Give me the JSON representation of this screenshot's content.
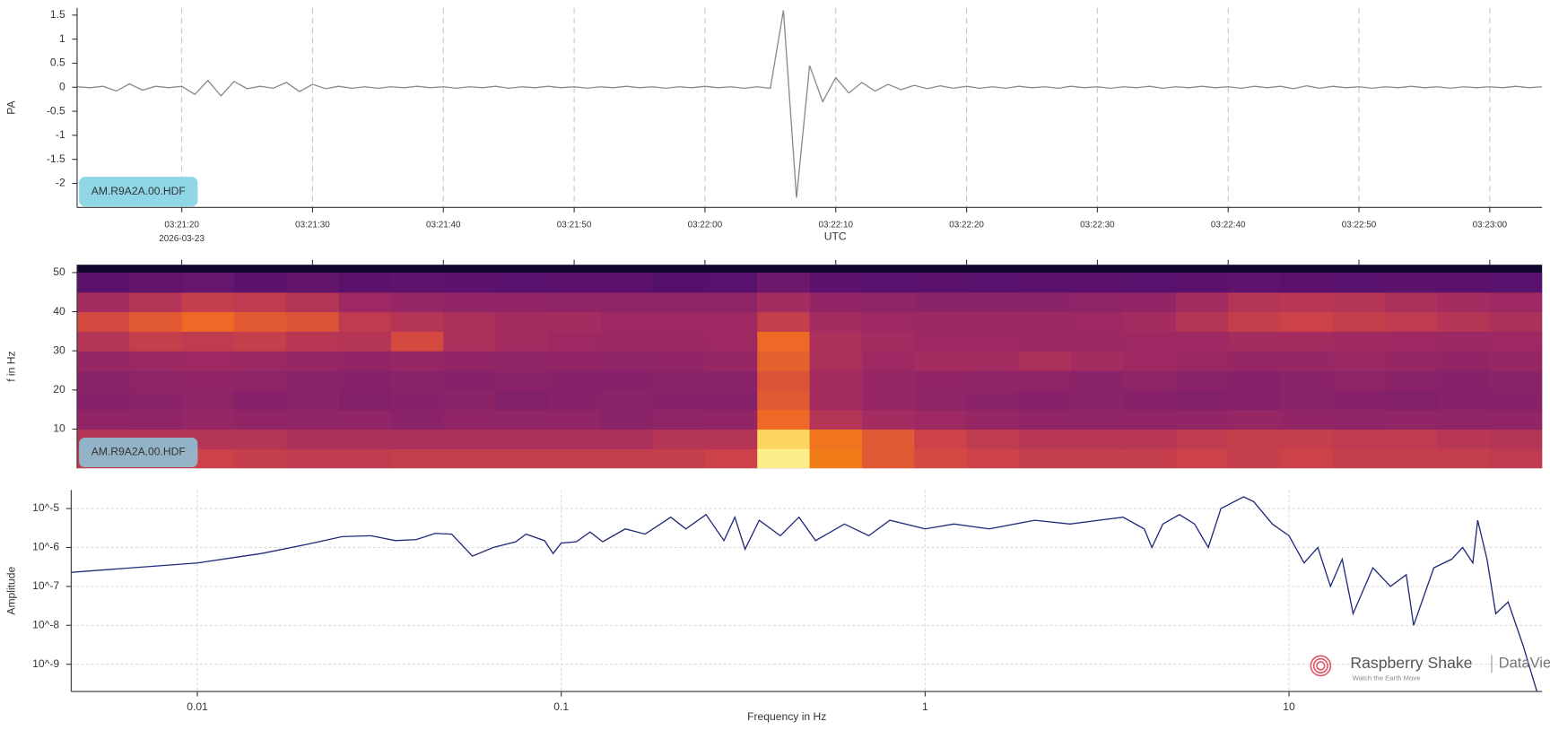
{
  "chart_data": [
    {
      "type": "line",
      "ylabel": "PA",
      "xlabel": "UTC",
      "x_sublabel": "2026-03-23",
      "annotation": "AM.R9A2A.00.HDF",
      "color": "#8a8a8a",
      "grid_x": true,
      "xlim": [
        "03:21:12",
        "03:23:04"
      ],
      "xticks": [
        "03:21:20",
        "03:21:30",
        "03:21:40",
        "03:21:50",
        "03:22:00",
        "03:22:10",
        "03:22:20",
        "03:22:30",
        "03:22:40",
        "03:22:50",
        "03:23:00"
      ],
      "ylim": [
        -2.5,
        1.65
      ],
      "yticks": [
        1.5,
        1,
        0.5,
        0,
        -0.5,
        -1,
        -1.5,
        -2
      ],
      "x": [
        "03:21:12",
        "03:21:13",
        "03:21:14",
        "03:21:15",
        "03:21:16",
        "03:21:17",
        "03:21:18",
        "03:21:19",
        "03:21:20",
        "03:21:21",
        "03:21:22",
        "03:21:23",
        "03:21:24",
        "03:21:25",
        "03:21:26",
        "03:21:27",
        "03:21:28",
        "03:21:29",
        "03:21:30",
        "03:21:31",
        "03:21:32",
        "03:21:33",
        "03:21:34",
        "03:21:35",
        "03:21:36",
        "03:21:37",
        "03:21:38",
        "03:21:39",
        "03:21:40",
        "03:21:41",
        "03:21:42",
        "03:21:43",
        "03:21:44",
        "03:21:45",
        "03:21:46",
        "03:21:47",
        "03:21:48",
        "03:21:49",
        "03:21:50",
        "03:21:51",
        "03:21:52",
        "03:21:53",
        "03:21:54",
        "03:21:55",
        "03:21:56",
        "03:21:57",
        "03:21:58",
        "03:21:59",
        "03:22:00",
        "03:22:01",
        "03:22:02",
        "03:22:03",
        "03:22:04",
        "03:22:05",
        "03:22:06",
        "03:22:07",
        "03:22:08",
        "03:22:09",
        "03:22:10",
        "03:22:11",
        "03:22:12",
        "03:22:13",
        "03:22:14",
        "03:22:15",
        "03:22:16",
        "03:22:17",
        "03:22:18",
        "03:22:19",
        "03:22:20",
        "03:22:21",
        "03:22:22",
        "03:22:23",
        "03:22:24",
        "03:22:25",
        "03:22:26",
        "03:22:27",
        "03:22:28",
        "03:22:29",
        "03:22:30",
        "03:22:31",
        "03:22:32",
        "03:22:33",
        "03:22:34",
        "03:22:35",
        "03:22:36",
        "03:22:37",
        "03:22:38",
        "03:22:39",
        "03:22:40",
        "03:22:41",
        "03:22:42",
        "03:22:43",
        "03:22:44",
        "03:22:45",
        "03:22:46",
        "03:22:47",
        "03:22:48",
        "03:22:49",
        "03:22:50",
        "03:22:51",
        "03:22:52",
        "03:22:53",
        "03:22:54",
        "03:22:55",
        "03:22:56",
        "03:22:57",
        "03:22:58",
        "03:22:59",
        "03:23:00",
        "03:23:01",
        "03:23:02",
        "03:23:03",
        "03:23:04"
      ],
      "values": [
        0.01,
        -0.01,
        0.02,
        -0.08,
        0.07,
        -0.06,
        0.02,
        -0.01,
        0.02,
        -0.15,
        0.14,
        -0.18,
        0.12,
        -0.03,
        0.02,
        -0.02,
        0.1,
        -0.09,
        0.06,
        -0.03,
        0.02,
        -0.02,
        0.01,
        -0.02,
        0.01,
        -0.01,
        0.02,
        -0.01,
        0.01,
        -0.02,
        0.01,
        -0.01,
        0.02,
        -0.02,
        0.01,
        -0.01,
        0.02,
        -0.01,
        0.01,
        -0.02,
        0.01,
        -0.01,
        0.02,
        -0.01,
        0.01,
        -0.02,
        0.01,
        -0.01,
        0.02,
        -0.01,
        0.01,
        -0.02,
        0.01,
        -0.02,
        1.6,
        -2.3,
        0.45,
        -0.3,
        0.2,
        -0.12,
        0.1,
        -0.08,
        0.06,
        -0.05,
        0.04,
        -0.03,
        0.03,
        -0.02,
        0.02,
        -0.02,
        0.01,
        -0.02,
        0.02,
        -0.01,
        0.01,
        -0.02,
        0.02,
        -0.01,
        0.01,
        -0.02,
        0.01,
        -0.01,
        0.02,
        -0.02,
        0.01,
        -0.01,
        0.02,
        -0.01,
        0.01,
        -0.02,
        0.02,
        -0.01,
        0.02,
        -0.03,
        0.03,
        -0.02,
        0.02,
        -0.01,
        0.01,
        -0.02,
        0.01,
        -0.01,
        0.02,
        -0.01,
        0.01,
        -0.02,
        0.01,
        -0.01,
        0.01,
        -0.01,
        0.02,
        -0.01,
        0.01
      ]
    },
    {
      "type": "heatmap",
      "ylabel": "f in Hz",
      "annotation": "AM.R9A2A.00.HDF",
      "colormap": "inferno",
      "zlim": [
        0,
        1
      ],
      "xlim": [
        "03:21:12",
        "03:23:04"
      ],
      "xticks": [
        "03:21:20",
        "03:21:30",
        "03:21:40",
        "03:21:50",
        "03:22:00",
        "03:22:10",
        "03:22:20",
        "03:22:30",
        "03:22:40",
        "03:22:50",
        "03:23:00"
      ],
      "ylim": [
        0,
        52
      ],
      "yticks": [
        10,
        20,
        30,
        40,
        50
      ],
      "x_bins": [
        "03:21:12",
        "03:21:16",
        "03:21:20",
        "03:21:24",
        "03:21:28",
        "03:21:32",
        "03:21:36",
        "03:21:40",
        "03:21:44",
        "03:21:48",
        "03:21:52",
        "03:21:56",
        "03:22:00",
        "03:22:04",
        "03:22:08",
        "03:22:12",
        "03:22:16",
        "03:22:20",
        "03:22:24",
        "03:22:28",
        "03:22:32",
        "03:22:36",
        "03:22:40",
        "03:22:44",
        "03:22:48",
        "03:22:52",
        "03:22:56",
        "03:23:00",
        "03:23:04"
      ],
      "y_bins": [
        0,
        5,
        10,
        15,
        20,
        25,
        30,
        35,
        40,
        45,
        50
      ],
      "z": [
        [
          0.6,
          0.6,
          0.62,
          0.6,
          0.58,
          0.58,
          0.6,
          0.6,
          0.6,
          0.6,
          0.6,
          0.6,
          0.62,
          0.98,
          0.8,
          0.7,
          0.65,
          0.62,
          0.6,
          0.6,
          0.6,
          0.62,
          0.6,
          0.62,
          0.6,
          0.6,
          0.6,
          0.58
        ],
        [
          0.55,
          0.55,
          0.55,
          0.55,
          0.52,
          0.52,
          0.52,
          0.52,
          0.52,
          0.52,
          0.52,
          0.55,
          0.55,
          0.95,
          0.78,
          0.7,
          0.62,
          0.58,
          0.56,
          0.56,
          0.56,
          0.58,
          0.6,
          0.6,
          0.58,
          0.58,
          0.56,
          0.55
        ],
        [
          0.45,
          0.44,
          0.46,
          0.45,
          0.44,
          0.45,
          0.43,
          0.45,
          0.44,
          0.45,
          0.43,
          0.44,
          0.45,
          0.75,
          0.55,
          0.5,
          0.48,
          0.46,
          0.45,
          0.44,
          0.45,
          0.45,
          0.46,
          0.45,
          0.44,
          0.45,
          0.44,
          0.45
        ],
        [
          0.42,
          0.43,
          0.44,
          0.42,
          0.43,
          0.41,
          0.42,
          0.43,
          0.41,
          0.42,
          0.43,
          0.42,
          0.42,
          0.7,
          0.5,
          0.46,
          0.44,
          0.43,
          0.42,
          0.43,
          0.42,
          0.41,
          0.42,
          0.43,
          0.42,
          0.41,
          0.42,
          0.42
        ],
        [
          0.43,
          0.44,
          0.45,
          0.44,
          0.43,
          0.42,
          0.43,
          0.42,
          0.43,
          0.42,
          0.42,
          0.43,
          0.43,
          0.68,
          0.5,
          0.46,
          0.45,
          0.44,
          0.44,
          0.43,
          0.44,
          0.43,
          0.42,
          0.43,
          0.44,
          0.43,
          0.42,
          0.43
        ],
        [
          0.46,
          0.47,
          0.48,
          0.47,
          0.46,
          0.45,
          0.46,
          0.45,
          0.44,
          0.45,
          0.44,
          0.45,
          0.46,
          0.72,
          0.52,
          0.48,
          0.5,
          0.5,
          0.52,
          0.5,
          0.48,
          0.47,
          0.46,
          0.46,
          0.47,
          0.46,
          0.45,
          0.46
        ],
        [
          0.55,
          0.6,
          0.58,
          0.6,
          0.56,
          0.55,
          0.65,
          0.52,
          0.5,
          0.48,
          0.47,
          0.47,
          0.48,
          0.75,
          0.52,
          0.5,
          0.48,
          0.48,
          0.47,
          0.47,
          0.48,
          0.48,
          0.5,
          0.5,
          0.49,
          0.48,
          0.47,
          0.48
        ],
        [
          0.65,
          0.7,
          0.75,
          0.7,
          0.68,
          0.58,
          0.55,
          0.52,
          0.5,
          0.5,
          0.48,
          0.48,
          0.48,
          0.6,
          0.5,
          0.48,
          0.47,
          0.47,
          0.47,
          0.48,
          0.5,
          0.55,
          0.6,
          0.62,
          0.6,
          0.58,
          0.55,
          0.52
        ],
        [
          0.5,
          0.55,
          0.6,
          0.58,
          0.55,
          0.48,
          0.46,
          0.45,
          0.45,
          0.44,
          0.44,
          0.44,
          0.44,
          0.5,
          0.45,
          0.44,
          0.43,
          0.43,
          0.43,
          0.44,
          0.45,
          0.5,
          0.55,
          0.56,
          0.55,
          0.52,
          0.5,
          0.48
        ],
        [
          0.3,
          0.32,
          0.33,
          0.3,
          0.32,
          0.3,
          0.31,
          0.3,
          0.29,
          0.3,
          0.3,
          0.28,
          0.29,
          0.35,
          0.3,
          0.29,
          0.3,
          0.29,
          0.3,
          0.3,
          0.29,
          0.3,
          0.31,
          0.3,
          0.29,
          0.3,
          0.3,
          0.29
        ]
      ]
    },
    {
      "type": "line",
      "ylabel": "Amplitude",
      "xlabel": "Frequency in Hz",
      "color": "#1f2a7a",
      "xlog": true,
      "ylog": true,
      "grid_x": true,
      "grid_y": true,
      "xlim": [
        0.0045,
        49.6
      ],
      "xticks": [
        0.01,
        0.1,
        1,
        10
      ],
      "ylim": [
        2e-10,
        3e-05
      ],
      "yticks": [
        {
          "value": 1e-05,
          "label": "10^-5"
        },
        {
          "value": 1e-06,
          "label": "10^-6"
        },
        {
          "value": 1e-07,
          "label": "10^-7"
        },
        {
          "value": 1e-08,
          "label": "10^-8"
        },
        {
          "value": 1e-09,
          "label": "10^-9"
        }
      ],
      "x": [
        0.0045,
        0.01,
        0.015,
        0.02,
        0.025,
        0.03,
        0.035,
        0.04,
        0.045,
        0.05,
        0.057,
        0.065,
        0.075,
        0.08,
        0.09,
        0.095,
        0.1,
        0.11,
        0.12,
        0.13,
        0.15,
        0.17,
        0.2,
        0.22,
        0.25,
        0.28,
        0.3,
        0.32,
        0.35,
        0.4,
        0.45,
        0.5,
        0.6,
        0.7,
        0.8,
        1,
        1.2,
        1.5,
        2,
        2.5,
        3,
        3.5,
        4,
        4.2,
        4.5,
        5,
        5.5,
        6,
        6.5,
        7.5,
        8,
        9,
        10,
        11,
        12,
        13,
        14,
        15,
        17,
        19,
        21,
        22,
        25,
        28,
        30,
        32,
        33,
        35,
        37,
        40,
        44,
        48
      ],
      "values": [
        2.3e-07,
        4e-07,
        7e-07,
        1.2e-06,
        1.9e-06,
        2e-06,
        1.5e-06,
        1.6e-06,
        2.3e-06,
        2.2e-06,
        6e-07,
        1e-06,
        1.4e-06,
        2.2e-06,
        1.5e-06,
        7e-07,
        1.3e-06,
        1.4e-06,
        2.5e-06,
        1.4e-06,
        3e-06,
        2.2e-06,
        6e-06,
        3e-06,
        7e-06,
        1.5e-06,
        6e-06,
        9e-07,
        5e-06,
        2e-06,
        6e-06,
        1.5e-06,
        4e-06,
        2e-06,
        5e-06,
        3e-06,
        4e-06,
        3e-06,
        5e-06,
        4e-06,
        5e-06,
        6e-06,
        3e-06,
        1e-06,
        4e-06,
        7e-06,
        4e-06,
        1e-06,
        1e-05,
        2e-05,
        1.5e-05,
        4e-06,
        2e-06,
        4e-07,
        1e-06,
        1e-07,
        5e-07,
        2e-08,
        3e-07,
        1e-07,
        2e-07,
        1e-08,
        3e-07,
        5e-07,
        1e-06,
        4e-07,
        5e-06,
        5e-07,
        2e-08,
        4e-08,
        3e-09,
        2e-10
      ],
      "watermark": {
        "brand": "Raspberry Shake",
        "product": "DataView",
        "tagline": "Watch the Earth Move"
      }
    }
  ]
}
